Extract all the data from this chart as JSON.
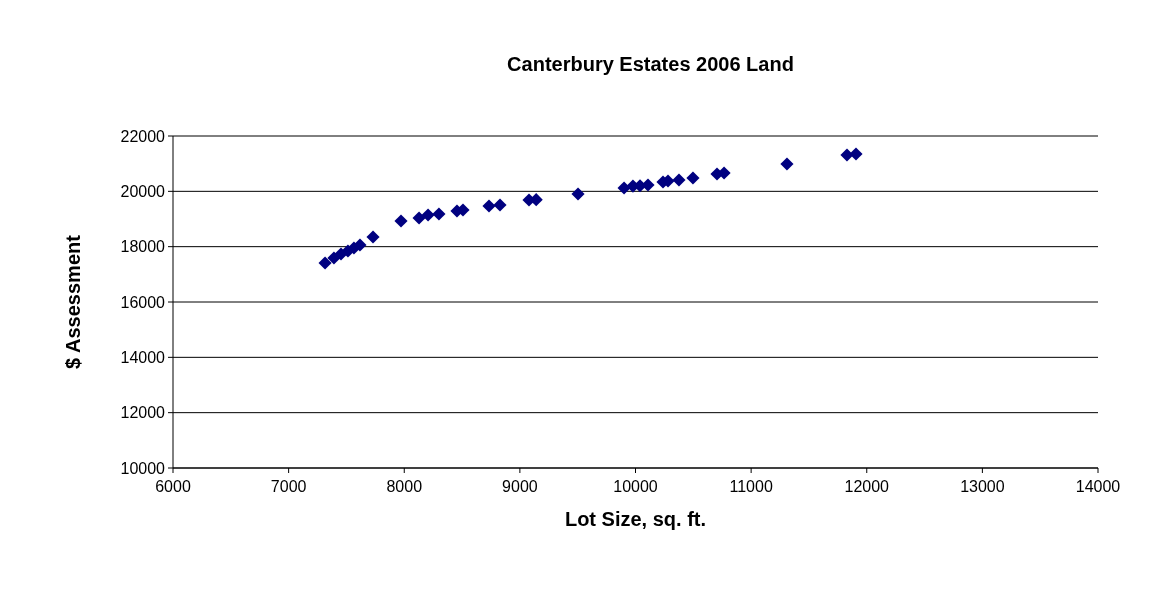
{
  "chart_data": {
    "type": "scatter",
    "title": "Canterbury Estates 2006 Land",
    "xlabel": "Lot Size, sq. ft.",
    "ylabel": "$ Assessment",
    "xlim": [
      6000,
      14000
    ],
    "xticks": [
      6000,
      7000,
      8000,
      9000,
      10000,
      11000,
      12000,
      13000,
      14000
    ],
    "ylim": [
      10000,
      22000
    ],
    "yticks": [
      10000,
      12000,
      14000,
      16000,
      18000,
      20000,
      22000
    ],
    "grid": "y",
    "marker": "diamond",
    "series": [
      {
        "color": "#000080",
        "x": [
          7315,
          7392,
          7453,
          7513,
          7565,
          7617,
          7730,
          7972,
          8128,
          8206,
          8300,
          8456,
          8508,
          8733,
          8828,
          9079,
          9141,
          9503,
          9901,
          9978,
          10039,
          10108,
          10238,
          10281,
          10376,
          10497,
          10705,
          10766,
          11310,
          11829,
          11907
        ],
        "values": [
          17410,
          17590,
          17735,
          17843,
          17952,
          18060,
          18350,
          18928,
          19036,
          19145,
          19180,
          19290,
          19325,
          19470,
          19506,
          19687,
          19700,
          19904,
          20120,
          20190,
          20200,
          20230,
          20337,
          20373,
          20410,
          20482,
          20627,
          20663,
          20988,
          21313,
          21350
        ]
      }
    ]
  }
}
